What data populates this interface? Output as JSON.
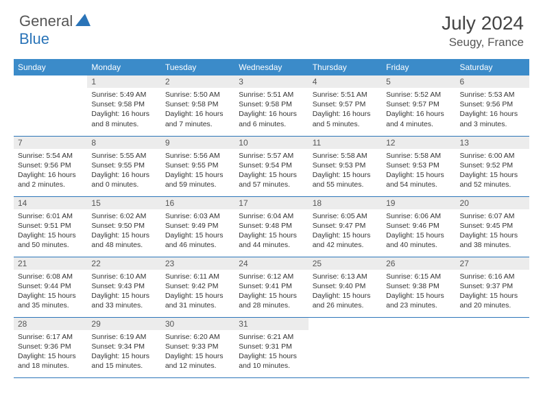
{
  "brand": {
    "part1": "General",
    "part2": "Blue"
  },
  "title": "July 2024",
  "location": "Seugy, France",
  "colors": {
    "header_bg": "#3b8bc9",
    "header_text": "#ffffff",
    "daynum_bg": "#ececec",
    "border": "#2a74b8",
    "brand_accent": "#2a74b8"
  },
  "weekdays": [
    "Sunday",
    "Monday",
    "Tuesday",
    "Wednesday",
    "Thursday",
    "Friday",
    "Saturday"
  ],
  "weeks": [
    [
      {
        "n": "",
        "l1": "",
        "l2": "",
        "l3": "",
        "l4": "",
        "empty": true
      },
      {
        "n": "1",
        "l1": "Sunrise: 5:49 AM",
        "l2": "Sunset: 9:58 PM",
        "l3": "Daylight: 16 hours",
        "l4": "and 8 minutes."
      },
      {
        "n": "2",
        "l1": "Sunrise: 5:50 AM",
        "l2": "Sunset: 9:58 PM",
        "l3": "Daylight: 16 hours",
        "l4": "and 7 minutes."
      },
      {
        "n": "3",
        "l1": "Sunrise: 5:51 AM",
        "l2": "Sunset: 9:58 PM",
        "l3": "Daylight: 16 hours",
        "l4": "and 6 minutes."
      },
      {
        "n": "4",
        "l1": "Sunrise: 5:51 AM",
        "l2": "Sunset: 9:57 PM",
        "l3": "Daylight: 16 hours",
        "l4": "and 5 minutes."
      },
      {
        "n": "5",
        "l1": "Sunrise: 5:52 AM",
        "l2": "Sunset: 9:57 PM",
        "l3": "Daylight: 16 hours",
        "l4": "and 4 minutes."
      },
      {
        "n": "6",
        "l1": "Sunrise: 5:53 AM",
        "l2": "Sunset: 9:56 PM",
        "l3": "Daylight: 16 hours",
        "l4": "and 3 minutes."
      }
    ],
    [
      {
        "n": "7",
        "l1": "Sunrise: 5:54 AM",
        "l2": "Sunset: 9:56 PM",
        "l3": "Daylight: 16 hours",
        "l4": "and 2 minutes."
      },
      {
        "n": "8",
        "l1": "Sunrise: 5:55 AM",
        "l2": "Sunset: 9:55 PM",
        "l3": "Daylight: 16 hours",
        "l4": "and 0 minutes."
      },
      {
        "n": "9",
        "l1": "Sunrise: 5:56 AM",
        "l2": "Sunset: 9:55 PM",
        "l3": "Daylight: 15 hours",
        "l4": "and 59 minutes."
      },
      {
        "n": "10",
        "l1": "Sunrise: 5:57 AM",
        "l2": "Sunset: 9:54 PM",
        "l3": "Daylight: 15 hours",
        "l4": "and 57 minutes."
      },
      {
        "n": "11",
        "l1": "Sunrise: 5:58 AM",
        "l2": "Sunset: 9:53 PM",
        "l3": "Daylight: 15 hours",
        "l4": "and 55 minutes."
      },
      {
        "n": "12",
        "l1": "Sunrise: 5:58 AM",
        "l2": "Sunset: 9:53 PM",
        "l3": "Daylight: 15 hours",
        "l4": "and 54 minutes."
      },
      {
        "n": "13",
        "l1": "Sunrise: 6:00 AM",
        "l2": "Sunset: 9:52 PM",
        "l3": "Daylight: 15 hours",
        "l4": "and 52 minutes."
      }
    ],
    [
      {
        "n": "14",
        "l1": "Sunrise: 6:01 AM",
        "l2": "Sunset: 9:51 PM",
        "l3": "Daylight: 15 hours",
        "l4": "and 50 minutes."
      },
      {
        "n": "15",
        "l1": "Sunrise: 6:02 AM",
        "l2": "Sunset: 9:50 PM",
        "l3": "Daylight: 15 hours",
        "l4": "and 48 minutes."
      },
      {
        "n": "16",
        "l1": "Sunrise: 6:03 AM",
        "l2": "Sunset: 9:49 PM",
        "l3": "Daylight: 15 hours",
        "l4": "and 46 minutes."
      },
      {
        "n": "17",
        "l1": "Sunrise: 6:04 AM",
        "l2": "Sunset: 9:48 PM",
        "l3": "Daylight: 15 hours",
        "l4": "and 44 minutes."
      },
      {
        "n": "18",
        "l1": "Sunrise: 6:05 AM",
        "l2": "Sunset: 9:47 PM",
        "l3": "Daylight: 15 hours",
        "l4": "and 42 minutes."
      },
      {
        "n": "19",
        "l1": "Sunrise: 6:06 AM",
        "l2": "Sunset: 9:46 PM",
        "l3": "Daylight: 15 hours",
        "l4": "and 40 minutes."
      },
      {
        "n": "20",
        "l1": "Sunrise: 6:07 AM",
        "l2": "Sunset: 9:45 PM",
        "l3": "Daylight: 15 hours",
        "l4": "and 38 minutes."
      }
    ],
    [
      {
        "n": "21",
        "l1": "Sunrise: 6:08 AM",
        "l2": "Sunset: 9:44 PM",
        "l3": "Daylight: 15 hours",
        "l4": "and 35 minutes."
      },
      {
        "n": "22",
        "l1": "Sunrise: 6:10 AM",
        "l2": "Sunset: 9:43 PM",
        "l3": "Daylight: 15 hours",
        "l4": "and 33 minutes."
      },
      {
        "n": "23",
        "l1": "Sunrise: 6:11 AM",
        "l2": "Sunset: 9:42 PM",
        "l3": "Daylight: 15 hours",
        "l4": "and 31 minutes."
      },
      {
        "n": "24",
        "l1": "Sunrise: 6:12 AM",
        "l2": "Sunset: 9:41 PM",
        "l3": "Daylight: 15 hours",
        "l4": "and 28 minutes."
      },
      {
        "n": "25",
        "l1": "Sunrise: 6:13 AM",
        "l2": "Sunset: 9:40 PM",
        "l3": "Daylight: 15 hours",
        "l4": "and 26 minutes."
      },
      {
        "n": "26",
        "l1": "Sunrise: 6:15 AM",
        "l2": "Sunset: 9:38 PM",
        "l3": "Daylight: 15 hours",
        "l4": "and 23 minutes."
      },
      {
        "n": "27",
        "l1": "Sunrise: 6:16 AM",
        "l2": "Sunset: 9:37 PM",
        "l3": "Daylight: 15 hours",
        "l4": "and 20 minutes."
      }
    ],
    [
      {
        "n": "28",
        "l1": "Sunrise: 6:17 AM",
        "l2": "Sunset: 9:36 PM",
        "l3": "Daylight: 15 hours",
        "l4": "and 18 minutes."
      },
      {
        "n": "29",
        "l1": "Sunrise: 6:19 AM",
        "l2": "Sunset: 9:34 PM",
        "l3": "Daylight: 15 hours",
        "l4": "and 15 minutes."
      },
      {
        "n": "30",
        "l1": "Sunrise: 6:20 AM",
        "l2": "Sunset: 9:33 PM",
        "l3": "Daylight: 15 hours",
        "l4": "and 12 minutes."
      },
      {
        "n": "31",
        "l1": "Sunrise: 6:21 AM",
        "l2": "Sunset: 9:31 PM",
        "l3": "Daylight: 15 hours",
        "l4": "and 10 minutes."
      },
      {
        "n": "",
        "l1": "",
        "l2": "",
        "l3": "",
        "l4": "",
        "empty": true
      },
      {
        "n": "",
        "l1": "",
        "l2": "",
        "l3": "",
        "l4": "",
        "empty": true
      },
      {
        "n": "",
        "l1": "",
        "l2": "",
        "l3": "",
        "l4": "",
        "empty": true
      }
    ]
  ]
}
